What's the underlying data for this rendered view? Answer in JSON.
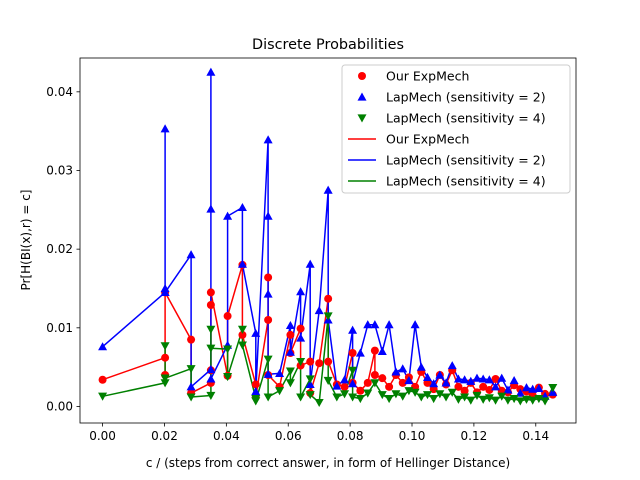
{
  "chart_data": {
    "type": "line",
    "title": "Discrete Probabilities",
    "xlabel": "c / (steps from correct answer, in form of Hellinger Distance)",
    "ylabel": "Pr[H(BI(x),r) = c]",
    "xlim": [
      -0.0073,
      0.153
    ],
    "ylim": [
      -0.0021,
      0.0443
    ],
    "xticks": [
      "0.00",
      "0.02",
      "0.04",
      "0.06",
      "0.08",
      "0.10",
      "0.12",
      "0.14"
    ],
    "xtick_values": [
      0,
      0.02,
      0.04,
      0.06,
      0.08,
      0.1,
      0.12,
      0.14
    ],
    "yticks": [
      "0.00",
      "0.01",
      "0.02",
      "0.03",
      "0.04"
    ],
    "ytick_values": [
      0,
      0.01,
      0.02,
      0.03,
      0.04
    ],
    "legend_position": "top-right",
    "legend": [
      {
        "label": "Our ExpMech",
        "kind": "marker",
        "marker": "circle",
        "color": "#ff0000"
      },
      {
        "label": "LapMech (sensitivity = 2)",
        "kind": "marker",
        "marker": "triangle-up",
        "color": "#0000ff"
      },
      {
        "label": "LapMech (sensitivity = 4)",
        "kind": "marker",
        "marker": "triangle-down",
        "color": "#008000"
      },
      {
        "label": "Our ExpMech",
        "kind": "line",
        "color": "#ff0000"
      },
      {
        "label": "LapMech (sensitivity = 2)",
        "kind": "line",
        "color": "#0000ff"
      },
      {
        "label": "LapMech (sensitivity = 4)",
        "kind": "line",
        "color": "#008000"
      }
    ],
    "series": [
      {
        "name": "Our ExpMech",
        "marker": "circle",
        "color": "#ff0000",
        "points": [
          [
            0,
            0.0034
          ],
          [
            0.0202,
            0.0062
          ],
          [
            0.0202,
            0.004
          ],
          [
            0.0202,
            0.0145
          ],
          [
            0.0286,
            0.0085
          ],
          [
            0.0286,
            0.0017
          ],
          [
            0.035,
            0.003
          ],
          [
            0.035,
            0.0046
          ],
          [
            0.035,
            0.0129
          ],
          [
            0.035,
            0.0145
          ],
          [
            0.0404,
            0.0039
          ],
          [
            0.0404,
            0.0115
          ],
          [
            0.0452,
            0.018
          ],
          [
            0.0452,
            0.0091
          ],
          [
            0.0495,
            0.0028
          ],
          [
            0.0495,
            0.0012
          ],
          [
            0.0535,
            0.011
          ],
          [
            0.0535,
            0.0164
          ],
          [
            0.0535,
            0.004
          ],
          [
            0.0572,
            0.0025
          ],
          [
            0.0607,
            0.0091
          ],
          [
            0.0607,
            0.0068
          ],
          [
            0.064,
            0.0099
          ],
          [
            0.064,
            0.0052
          ],
          [
            0.0671,
            0.0057
          ],
          [
            0.0671,
            0.0017
          ],
          [
            0.07,
            0.0055
          ],
          [
            0.0729,
            0.0137
          ],
          [
            0.0729,
            0.0057
          ],
          [
            0.0757,
            0.0028
          ],
          [
            0.0782,
            0.0025
          ],
          [
            0.0808,
            0.0068
          ],
          [
            0.0808,
            0.003
          ],
          [
            0.0833,
            0.002
          ],
          [
            0.0857,
            0.003
          ],
          [
            0.088,
            0.0071
          ],
          [
            0.088,
            0.004
          ],
          [
            0.0904,
            0.0036
          ],
          [
            0.0926,
            0.0025
          ],
          [
            0.0948,
            0.004
          ],
          [
            0.097,
            0.003
          ],
          [
            0.099,
            0.0037
          ],
          [
            0.101,
            0.0025
          ],
          [
            0.103,
            0.0044
          ],
          [
            0.105,
            0.003
          ],
          [
            0.107,
            0.0022
          ],
          [
            0.109,
            0.004
          ],
          [
            0.111,
            0.0028
          ],
          [
            0.113,
            0.0046
          ],
          [
            0.115,
            0.0025
          ],
          [
            0.117,
            0.002
          ],
          [
            0.119,
            0.003
          ],
          [
            0.121,
            0.0018
          ],
          [
            0.123,
            0.0025
          ],
          [
            0.125,
            0.0021
          ],
          [
            0.127,
            0.0035
          ],
          [
            0.129,
            0.002
          ],
          [
            0.131,
            0.0018
          ],
          [
            0.133,
            0.0027
          ],
          [
            0.135,
            0.0022
          ],
          [
            0.137,
            0.0019
          ],
          [
            0.139,
            0.0014
          ],
          [
            0.141,
            0.0024
          ],
          [
            0.143,
            0.0016
          ],
          [
            0.1455,
            0.0015
          ]
        ]
      },
      {
        "name": "LapMech (sensitivity = 2)",
        "marker": "triangle-up",
        "color": "#0000ff",
        "points": [
          [
            0,
            0.0076
          ],
          [
            0.0202,
            0.0145
          ],
          [
            0.0202,
            0.015
          ],
          [
            0.0202,
            0.0353
          ],
          [
            0.0202,
            0.0145
          ],
          [
            0.0286,
            0.0193
          ],
          [
            0.0286,
            0.0025
          ],
          [
            0.035,
            0.0047
          ],
          [
            0.035,
            0.0425
          ],
          [
            0.035,
            0.0251
          ],
          [
            0.035,
            0.0035
          ],
          [
            0.0404,
            0.0078
          ],
          [
            0.0404,
            0.0242
          ],
          [
            0.0452,
            0.0253
          ],
          [
            0.0452,
            0.0181
          ],
          [
            0.0495,
            0.0093
          ],
          [
            0.0495,
            0.0019
          ],
          [
            0.0535,
            0.0339
          ],
          [
            0.0535,
            0.0242
          ],
          [
            0.0535,
            0.0143
          ],
          [
            0.0535,
            0.0041
          ],
          [
            0.0572,
            0.0042
          ],
          [
            0.0607,
            0.0103
          ],
          [
            0.0607,
            0.0069
          ],
          [
            0.064,
            0.0146
          ],
          [
            0.064,
            0.0087
          ],
          [
            0.0671,
            0.0181
          ],
          [
            0.0671,
            0.0028
          ],
          [
            0.07,
            0.0122
          ],
          [
            0.0729,
            0.0275
          ],
          [
            0.0729,
            0.011
          ],
          [
            0.0757,
            0.0026
          ],
          [
            0.0782,
            0.0034
          ],
          [
            0.0808,
            0.0097
          ],
          [
            0.0808,
            0.0029
          ],
          [
            0.0833,
            0.0068
          ],
          [
            0.0857,
            0.0104
          ],
          [
            0.088,
            0.0104
          ],
          [
            0.0904,
            0.007
          ],
          [
            0.0926,
            0.0104
          ],
          [
            0.0948,
            0.0044
          ],
          [
            0.097,
            0.0048
          ],
          [
            0.099,
            0.0033
          ],
          [
            0.101,
            0.0104
          ],
          [
            0.103,
            0.005
          ],
          [
            0.105,
            0.0037
          ],
          [
            0.107,
            0.0029
          ],
          [
            0.109,
            0.004
          ],
          [
            0.111,
            0.003
          ],
          [
            0.113,
            0.0052
          ],
          [
            0.115,
            0.0035
          ],
          [
            0.117,
            0.0034
          ],
          [
            0.119,
            0.0032
          ],
          [
            0.121,
            0.0036
          ],
          [
            0.123,
            0.0035
          ],
          [
            0.125,
            0.0034
          ],
          [
            0.127,
            0.0025
          ],
          [
            0.129,
            0.0036
          ],
          [
            0.131,
            0.0021
          ],
          [
            0.133,
            0.0033
          ],
          [
            0.135,
            0.0017
          ],
          [
            0.137,
            0.0024
          ],
          [
            0.139,
            0.0022
          ],
          [
            0.141,
            0.0023
          ],
          [
            0.143,
            0.0013
          ],
          [
            0.1455,
            0.0018
          ]
        ]
      },
      {
        "name": "LapMech (sensitivity = 4)",
        "marker": "triangle-down",
        "color": "#008000",
        "points": [
          [
            0,
            0.0013
          ],
          [
            0.0202,
            0.003
          ],
          [
            0.0202,
            0.0077
          ],
          [
            0.0202,
            0.0036
          ],
          [
            0.0286,
            0.0048
          ],
          [
            0.0286,
            0.0012
          ],
          [
            0.035,
            0.0014
          ],
          [
            0.035,
            0.0098
          ],
          [
            0.035,
            0.0074
          ],
          [
            0.0404,
            0.0073
          ],
          [
            0.0404,
            0.0038
          ],
          [
            0.0452,
            0.0098
          ],
          [
            0.0452,
            0.0078
          ],
          [
            0.0495,
            0.001
          ],
          [
            0.0495,
            0.0007
          ],
          [
            0.0535,
            0.006
          ],
          [
            0.0535,
            0.0012
          ],
          [
            0.0572,
            0.002
          ],
          [
            0.0607,
            0.0045
          ],
          [
            0.0607,
            0.003
          ],
          [
            0.064,
            0.0057
          ],
          [
            0.064,
            0.0012
          ],
          [
            0.0671,
            0.0035
          ],
          [
            0.0671,
            0.0015
          ],
          [
            0.07,
            0.0005
          ],
          [
            0.0729,
            0.0115
          ],
          [
            0.0729,
            0.0033
          ],
          [
            0.0757,
            0.0012
          ],
          [
            0.0782,
            0.0016
          ],
          [
            0.0808,
            0.0046
          ],
          [
            0.0808,
            0.0012
          ],
          [
            0.0833,
            0.001
          ],
          [
            0.0857,
            0.0017
          ],
          [
            0.088,
            0.003
          ],
          [
            0.0904,
            0.0015
          ],
          [
            0.0926,
            0.001
          ],
          [
            0.0948,
            0.0016
          ],
          [
            0.097,
            0.0013
          ],
          [
            0.099,
            0.002
          ],
          [
            0.101,
            0.0018
          ],
          [
            0.103,
            0.0012
          ],
          [
            0.105,
            0.0015
          ],
          [
            0.107,
            0.001
          ],
          [
            0.109,
            0.0016
          ],
          [
            0.111,
            0.0012
          ],
          [
            0.113,
            0.0018
          ],
          [
            0.115,
            0.0009
          ],
          [
            0.117,
            0.0012
          ],
          [
            0.119,
            0.0008
          ],
          [
            0.121,
            0.0014
          ],
          [
            0.123,
            0.0009
          ],
          [
            0.125,
            0.0011
          ],
          [
            0.127,
            0.0008
          ],
          [
            0.129,
            0.0013
          ],
          [
            0.131,
            0.0008
          ],
          [
            0.133,
            0.001
          ],
          [
            0.135,
            0.0007
          ],
          [
            0.137,
            0.0009
          ],
          [
            0.139,
            0.0008
          ],
          [
            0.141,
            0.001
          ],
          [
            0.143,
            0.0007
          ],
          [
            0.1455,
            0.0024
          ]
        ]
      }
    ]
  }
}
